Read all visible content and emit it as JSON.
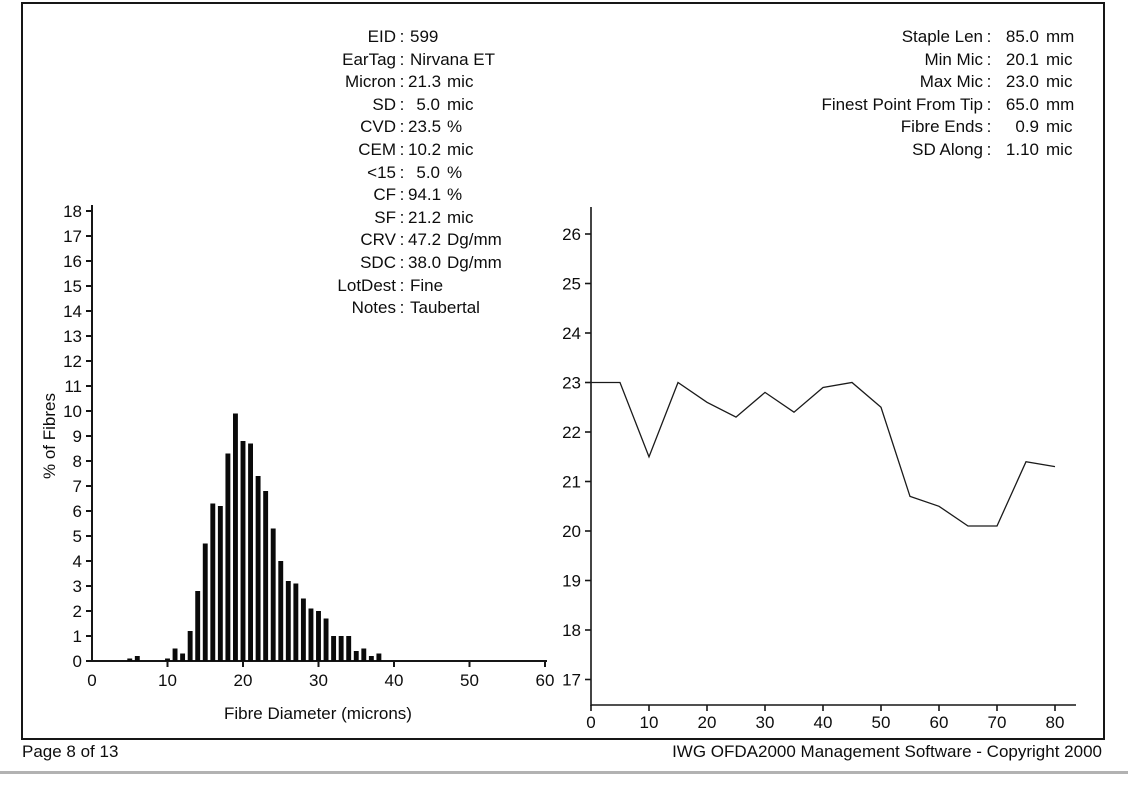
{
  "footer": {
    "left": "Page 8 of 13",
    "right": "IWG OFDA2000 Management Software - Copyright 2000"
  },
  "colors": {
    "ink": "#0d0d0d",
    "axis": "#161616",
    "bar_fill": "#0a0a0a",
    "line_stroke": "#1a1a1a",
    "separator_gray": "#b2b2b2"
  },
  "sample_info": [
    {
      "label": "EID",
      "value": "599",
      "unit": "",
      "text": true
    },
    {
      "label": "EarTag",
      "value": "Nirvana ET",
      "unit": "",
      "text": true
    },
    {
      "label": "Micron",
      "value": "21.3",
      "unit": "mic"
    },
    {
      "label": "SD",
      "value": "5.0",
      "unit": "mic"
    },
    {
      "label": "CVD",
      "value": "23.5",
      "unit": "%"
    },
    {
      "label": "CEM",
      "value": "10.2",
      "unit": "mic"
    },
    {
      "label": "<15",
      "value": "5.0",
      "unit": "%"
    },
    {
      "label": "CF",
      "value": "94.1",
      "unit": "%"
    },
    {
      "label": "SF",
      "value": "21.2",
      "unit": "mic"
    },
    {
      "label": "CRV",
      "value": "47.2",
      "unit": "Dg/mm"
    },
    {
      "label": "SDC",
      "value": "38.0",
      "unit": "Dg/mm"
    },
    {
      "label": "LotDest",
      "value": "Fine",
      "unit": "",
      "text": true
    },
    {
      "label": "Notes",
      "value": "Taubertal",
      "unit": "",
      "text": true
    }
  ],
  "staple_info": [
    {
      "label": "Staple Len",
      "value": "85.0",
      "unit": "mm"
    },
    {
      "label": "Min Mic",
      "value": "20.1",
      "unit": "mic"
    },
    {
      "label": "Max Mic",
      "value": "23.0",
      "unit": "mic"
    },
    {
      "label": "Finest Point From Tip",
      "value": "65.0",
      "unit": "mm"
    },
    {
      "label": "Fibre Ends",
      "value": "0.9",
      "unit": "mic"
    },
    {
      "label": "SD Along",
      "value": "1.10",
      "unit": "mic"
    }
  ],
  "chart_data": [
    {
      "type": "bar",
      "name": "fibre-diameter-histogram",
      "title": "",
      "xlabel": "Fibre Diameter (microns)",
      "ylabel": "% of Fibres",
      "xlim": [
        0,
        62
      ],
      "ylim": [
        0,
        18
      ],
      "xticks": [
        0,
        10,
        20,
        30,
        40,
        50,
        60
      ],
      "yticks": [
        0,
        1,
        2,
        3,
        4,
        5,
        6,
        7,
        8,
        9,
        10,
        11,
        12,
        13,
        14,
        15,
        16,
        17,
        18
      ],
      "grid": false,
      "categories": [
        5,
        6,
        10,
        11,
        12,
        13,
        14,
        15,
        16,
        17,
        18,
        19,
        20,
        21,
        22,
        23,
        24,
        25,
        26,
        27,
        28,
        29,
        30,
        31,
        32,
        33,
        34,
        35,
        36,
        37,
        38
      ],
      "values": [
        0.1,
        0.2,
        0.1,
        0.5,
        0.3,
        1.2,
        2.8,
        4.7,
        6.3,
        6.2,
        8.3,
        9.9,
        8.8,
        8.7,
        7.4,
        6.8,
        5.3,
        4.0,
        3.2,
        3.1,
        2.5,
        2.1,
        2.0,
        1.7,
        1.0,
        1.0,
        1.0,
        0.4,
        0.5,
        0.2,
        0.3
      ]
    },
    {
      "type": "line",
      "name": "micron-along-staple-profile",
      "title": "",
      "xlabel": "",
      "ylabel": "",
      "xlim": [
        0,
        83.5
      ],
      "ylim": [
        16.5,
        26.6
      ],
      "xticks": [
        0,
        10,
        20,
        30,
        40,
        50,
        60,
        70,
        80
      ],
      "yticks": [
        17,
        18,
        19,
        20,
        21,
        22,
        23,
        24,
        25,
        26
      ],
      "grid": false,
      "x": [
        0,
        5,
        10,
        15,
        20,
        25,
        30,
        35,
        40,
        45,
        50,
        55,
        60,
        65,
        70,
        75,
        80
      ],
      "y": [
        23.0,
        23.0,
        21.5,
        23.0,
        22.6,
        22.3,
        22.8,
        22.4,
        22.9,
        23.0,
        22.5,
        20.7,
        20.5,
        20.1,
        20.1,
        21.4,
        21.3
      ]
    }
  ]
}
